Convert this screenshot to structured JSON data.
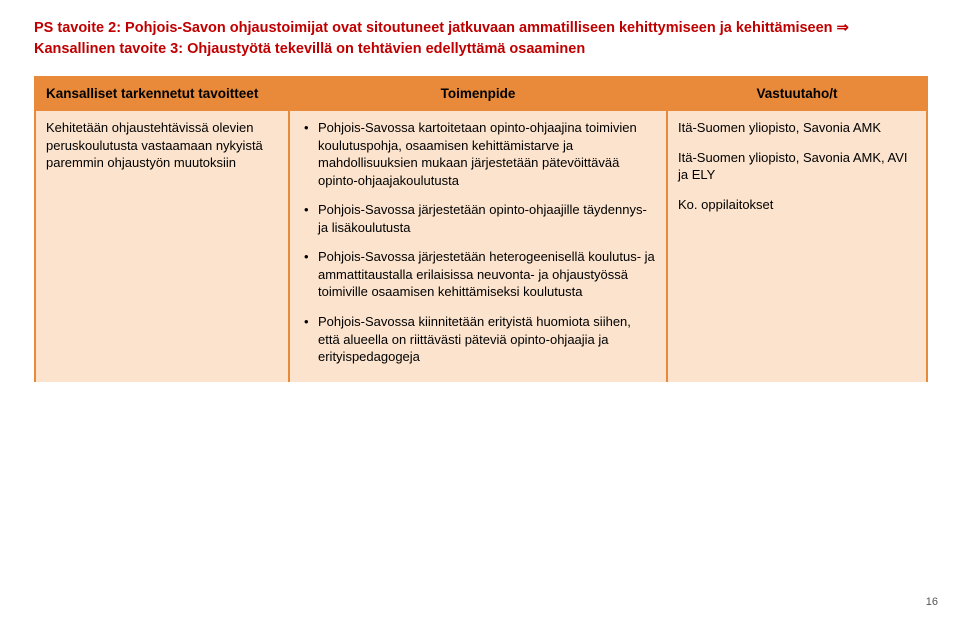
{
  "heading": {
    "line1": "PS tavoite 2: Pohjois-Savon ohjaustoimijat ovat sitoutuneet jatkuvaan ammatilliseen kehittymiseen ja kehittämiseen",
    "arrow": "⇒",
    "line2": "Kansallinen tavoite 3: Ohjaustyötä tekevillä on tehtävien edellyttämä osaaminen"
  },
  "table": {
    "headers": {
      "col1": "Kansalliset tarkennetut tavoitteet",
      "col2": "Toimenpide",
      "col3": "Vastuutaho/t"
    },
    "col1_text": "Kehitetään ohjaustehtävissä olevien peruskoulutusta vastaamaan nykyistä paremmin ohjaustyön muutoksiin",
    "actions": [
      "Pohjois-Savossa kartoitetaan opinto-ohjaajina toimivien koulutuspohja, osaamisen kehittämistarve ja mahdollisuuksien mukaan järjestetään pätevöittävää opinto-ohjaajakoulutusta",
      "Pohjois-Savossa järjestetään opinto-ohjaajille täydennys- ja lisäkoulutusta",
      "Pohjois-Savossa järjestetään heterogeenisellä koulutus- ja ammattitaustalla erilaisissa neuvonta- ja ohjaustyössä toimiville osaamisen kehittämiseksi koulutusta",
      "Pohjois-Savossa kiinnitetään erityistä huomiota siihen, että alueella on riittävästi päteviä opinto-ohjaajia ja erityispedagogeja"
    ],
    "responsibles": [
      "Itä-Suomen yliopisto, Savonia AMK",
      "Itä-Suomen yliopisto, Savonia AMK, AVI ja ELY",
      "Ko. oppilaitokset"
    ]
  },
  "page_number": "16"
}
